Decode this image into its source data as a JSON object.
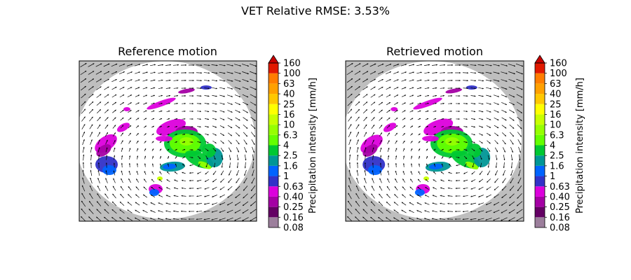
{
  "figure": {
    "suptitle": "VET Relative RMSE: 3.53%"
  },
  "panels": [
    {
      "title": "Reference motion",
      "colorbar_label": "Precipitation intensity [mm/h]"
    },
    {
      "title": "Retrieved motion",
      "colorbar_label": "Precipitation intensity [mm/h]"
    }
  ],
  "chart_data": [
    {
      "type": "heatmap",
      "title": "Reference motion",
      "xlabel": "",
      "ylabel": "",
      "grid": false,
      "colorbar": {
        "label": "Precipitation intensity [mm/h]",
        "ticks": [
          "0.08",
          "0.16",
          "0.25",
          "0.40",
          "0.63",
          "1",
          "1.6",
          "2.5",
          "4",
          "6.3",
          "10",
          "16",
          "25",
          "40",
          "63",
          "100",
          "160"
        ],
        "colors": [
          "#9c7f9c",
          "#640064",
          "#a400a4",
          "#dc00dc",
          "#3232c8",
          "#0064ff",
          "#009696",
          "#00c832",
          "#64ff00",
          "#96ff00",
          "#c8ff00",
          "#ffff00",
          "#ffc800",
          "#ffa000",
          "#ff7d00",
          "#e11900"
        ],
        "extend_color": "#c80000"
      },
      "overlay": "motion vector field (arrows)",
      "nodata_color": "#bebebe"
    },
    {
      "type": "heatmap",
      "title": "Retrieved motion",
      "xlabel": "",
      "ylabel": "",
      "grid": false,
      "colorbar": {
        "label": "Precipitation intensity [mm/h]",
        "ticks": [
          "0.08",
          "0.16",
          "0.25",
          "0.40",
          "0.63",
          "1",
          "1.6",
          "2.5",
          "4",
          "6.3",
          "10",
          "16",
          "25",
          "40",
          "63",
          "100",
          "160"
        ],
        "colors": [
          "#9c7f9c",
          "#640064",
          "#a400a4",
          "#dc00dc",
          "#3232c8",
          "#0064ff",
          "#009696",
          "#00c832",
          "#64ff00",
          "#96ff00",
          "#c8ff00",
          "#ffff00",
          "#ffc800",
          "#ffa000",
          "#ff7d00",
          "#e11900"
        ],
        "extend_color": "#c80000"
      },
      "overlay": "motion vector field (arrows)",
      "nodata_color": "#bebebe"
    }
  ]
}
